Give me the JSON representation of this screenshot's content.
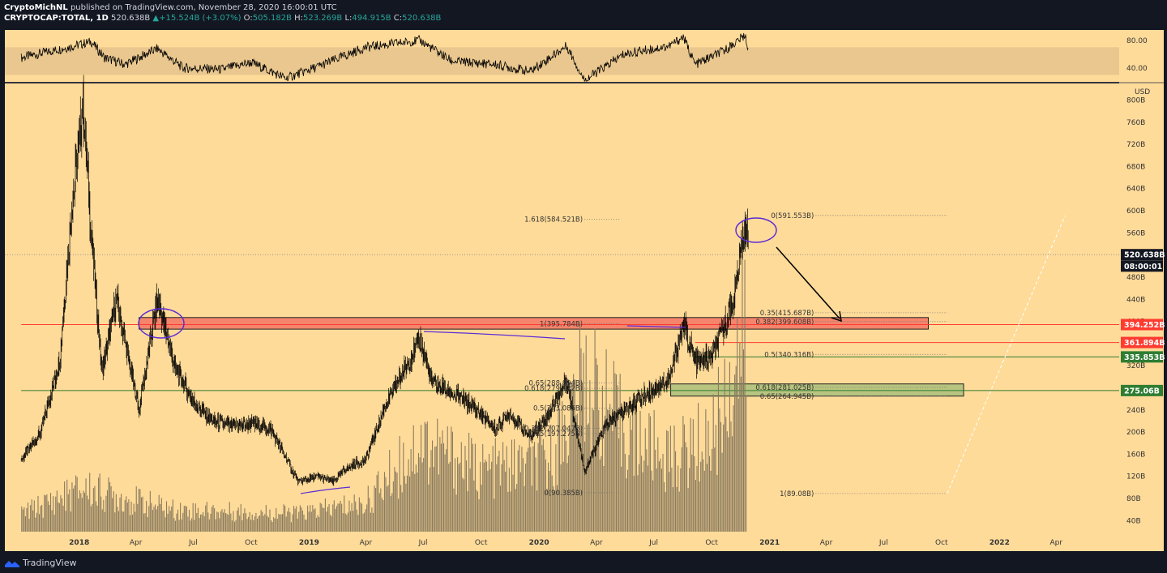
{
  "header": {
    "author": "CryptoMichNL",
    "published": "published on TradingView.com, November 28, 2020 16:00:01 UTC",
    "symbol": "CRYPTOCAP:TOTAL, 1D",
    "last": "520.638B",
    "change": "+15.524B (+3.07%)",
    "o_label": "O:",
    "o": "505.182B",
    "h_label": "H:",
    "h": "523.269B",
    "l_label": "L:",
    "l": "494.915B",
    "c_label": "C:",
    "c": "520.638B"
  },
  "brand": "TradingView",
  "colors": {
    "background": "#ffdb99",
    "frame": "#131722",
    "candle": "#000000",
    "volume": "#8a7b5f",
    "rsi_band": "#e9c78e",
    "resistance_zone": "#f4846b",
    "support_zone": "#b8c47f",
    "red_line": "#ff3b30",
    "green_line": "#2e7d32",
    "annotation": "#5b2bd8"
  },
  "chart_data": {
    "type": "candlestick",
    "symbol": "CRYPTOCAP:TOTAL",
    "interval": "1D",
    "unit": "USD",
    "ylim": [
      20,
      830
    ],
    "price_ticks": [
      "40B",
      "80B",
      "120B",
      "160B",
      "200B",
      "240B",
      "280B",
      "320B",
      "360B",
      "400B",
      "440B",
      "480B",
      "520B",
      "560B",
      "600B",
      "640B",
      "680B",
      "720B",
      "760B",
      "800B"
    ],
    "time_ticks": [
      "2018",
      "Apr",
      "Jul",
      "Oct",
      "2019",
      "Apr",
      "Jul",
      "Oct",
      "2020",
      "Apr",
      "Jul",
      "Oct",
      "2021",
      "Apr",
      "Jul",
      "Oct",
      "2022",
      "Apr"
    ],
    "price_path": [
      [
        "2017-10-01",
        150
      ],
      [
        "2017-11-01",
        200
      ],
      [
        "2017-12-01",
        330
      ],
      [
        "2017-12-20",
        600
      ],
      [
        "2018-01-07",
        795
      ],
      [
        "2018-01-20",
        560
      ],
      [
        "2018-02-06",
        310
      ],
      [
        "2018-03-01",
        440
      ],
      [
        "2018-04-06",
        240
      ],
      [
        "2018-05-05",
        440
      ],
      [
        "2018-06-01",
        320
      ],
      [
        "2018-07-01",
        255
      ],
      [
        "2018-08-01",
        220
      ],
      [
        "2018-09-01",
        210
      ],
      [
        "2018-10-01",
        215
      ],
      [
        "2018-11-01",
        205
      ],
      [
        "2018-12-15",
        110
      ],
      [
        "2019-01-15",
        120
      ],
      [
        "2019-02-08",
        110
      ],
      [
        "2019-03-01",
        135
      ],
      [
        "2019-04-01",
        150
      ],
      [
        "2019-05-01",
        245
      ],
      [
        "2019-06-26",
        365
      ],
      [
        "2019-07-15",
        290
      ],
      [
        "2019-08-15",
        270
      ],
      [
        "2019-09-20",
        245
      ],
      [
        "2019-10-24",
        205
      ],
      [
        "2019-11-15",
        235
      ],
      [
        "2019-12-18",
        190
      ],
      [
        "2020-01-15",
        230
      ],
      [
        "2020-02-14",
        295
      ],
      [
        "2020-03-13",
        130
      ],
      [
        "2020-04-15",
        210
      ],
      [
        "2020-05-15",
        240
      ],
      [
        "2020-06-15",
        265
      ],
      [
        "2020-07-26",
        295
      ],
      [
        "2020-08-17",
        395
      ],
      [
        "2020-09-05",
        325
      ],
      [
        "2020-10-01",
        335
      ],
      [
        "2020-10-21",
        390
      ],
      [
        "2020-11-05",
        440
      ],
      [
        "2020-11-24",
        585
      ],
      [
        "2020-11-28",
        520
      ]
    ],
    "volume_profile": [
      [
        "2017-10-01",
        0.05
      ],
      [
        "2018-01-07",
        0.12
      ],
      [
        "2018-06-01",
        0.06
      ],
      [
        "2018-12-15",
        0.05
      ],
      [
        "2019-04-01",
        0.08
      ],
      [
        "2019-06-26",
        0.25
      ],
      [
        "2019-10-01",
        0.17
      ],
      [
        "2020-01-15",
        0.19
      ],
      [
        "2020-03-13",
        0.42
      ],
      [
        "2020-05-15",
        0.28
      ],
      [
        "2020-07-26",
        0.2
      ],
      [
        "2020-10-01",
        0.26
      ],
      [
        "2020-11-24",
        0.55
      ]
    ],
    "price_labels": [
      {
        "text": "520.638B",
        "value": 520.638,
        "color": "#131722"
      },
      {
        "text": "08:00:01",
        "value": 500,
        "color": "#131722"
      },
      {
        "text": "394.252B",
        "value": 394.252,
        "color": "#ff3b30"
      },
      {
        "text": "361.894B",
        "value": 361.894,
        "color": "#ff3b30"
      },
      {
        "text": "335.853B",
        "value": 335.853,
        "color": "#2e7d32"
      },
      {
        "text": "275.06B",
        "value": 275.06,
        "color": "#2e7d32"
      }
    ],
    "horizontal_lines": [
      {
        "value": 394.252,
        "color": "#ff3b30",
        "from": "2017-10-01"
      },
      {
        "value": 361.894,
        "color": "#ff3b30",
        "from": "2020-09-05"
      },
      {
        "value": 335.853,
        "color": "#2e7d32",
        "from": "2020-09-05"
      },
      {
        "value": 275.06,
        "color": "#2e7d32",
        "from": "2017-10-01"
      }
    ],
    "zones": [
      {
        "from": "2018-04-06",
        "to": "2021-09-10",
        "low": 386,
        "high": 407,
        "color": "#f4846b"
      },
      {
        "from": "2020-07-28",
        "to": "2021-11-05",
        "low": 265,
        "high": 287,
        "color": "#b8c47f"
      }
    ],
    "fib_upper": {
      "from": "2021-03-15",
      "to": "2021-10-10",
      "levels": [
        {
          "text": "0(591.553B)",
          "value": 591.553
        },
        {
          "text": "0.35(415.687B)",
          "value": 415.687
        },
        {
          "text": "0.382(399.608B)",
          "value": 399.608
        },
        {
          "text": "0.5(340.316B)",
          "value": 340.316
        },
        {
          "text": "0.618(281.025B)",
          "value": 281.025
        },
        {
          "text": "0.65(264.945B)",
          "value": 264.945
        },
        {
          "text": "1(89.08B)",
          "value": 89.08
        }
      ]
    },
    "fib_lower": {
      "from": "2020-03-13",
      "to": "2020-05-10",
      "levels": [
        {
          "text": "1.618(584.521B)",
          "value": 584.521
        },
        {
          "text": "1(395.784B)",
          "value": 395.784
        },
        {
          "text": "0.65(288.894B)",
          "value": 288.894
        },
        {
          "text": "0.618(279.122B)",
          "value": 279.122
        },
        {
          "text": "0.5(243.085B)",
          "value": 243.085
        },
        {
          "text": "0.382(207.047B)",
          "value": 207.047
        },
        {
          "text": "0.35(197.275B)",
          "value": 197.275
        },
        {
          "text": "0(90.385B)",
          "value": 90.385
        }
      ]
    },
    "rsi": {
      "ylim": [
        20,
        95
      ],
      "ticks": [
        "80.00",
        "40.00"
      ],
      "band": [
        30,
        70
      ],
      "path": [
        [
          "2017-10-01",
          55
        ],
        [
          "2017-12-15",
          70
        ],
        [
          "2018-01-20",
          78
        ],
        [
          "2018-02-10",
          55
        ],
        [
          "2018-03-15",
          45
        ],
        [
          "2018-05-05",
          68
        ],
        [
          "2018-06-15",
          40
        ],
        [
          "2018-08-15",
          38
        ],
        [
          "2018-10-01",
          48
        ],
        [
          "2018-11-25",
          25
        ],
        [
          "2019-01-15",
          42
        ],
        [
          "2019-04-01",
          70
        ],
        [
          "2019-06-26",
          80
        ],
        [
          "2019-08-15",
          50
        ],
        [
          "2019-10-24",
          45
        ],
        [
          "2019-12-18",
          35
        ],
        [
          "2020-02-14",
          72
        ],
        [
          "2020-03-13",
          22
        ],
        [
          "2020-05-15",
          60
        ],
        [
          "2020-07-26",
          72
        ],
        [
          "2020-08-17",
          85
        ],
        [
          "2020-09-05",
          45
        ],
        [
          "2020-10-21",
          65
        ],
        [
          "2020-11-24",
          88
        ],
        [
          "2020-11-28",
          62
        ]
      ]
    }
  }
}
